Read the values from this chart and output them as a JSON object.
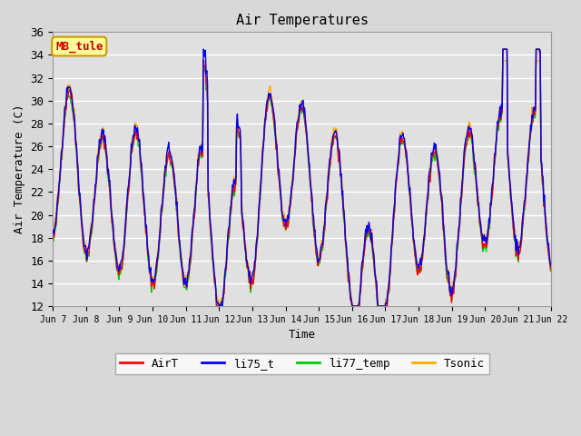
{
  "title": "Air Temperatures",
  "ylabel": "Air Temperature (C)",
  "xlabel": "Time",
  "ylim": [
    12,
    36
  ],
  "yticks": [
    12,
    14,
    16,
    18,
    20,
    22,
    24,
    26,
    28,
    30,
    32,
    34,
    36
  ],
  "series_colors": {
    "AirT": "#ff0000",
    "li75_t": "#0000ff",
    "li77_temp": "#00cc00",
    "Tsonic": "#ffaa00"
  },
  "annotation_text": "MB_tule",
  "annotation_color": "#cc0000",
  "annotation_bg": "#ffff99",
  "annotation_border": "#cc9900",
  "background_color": "#e0e0e0",
  "grid_color": "#ffffff",
  "x_tick_labels": [
    "Jun 7",
    "Jun 8",
    "Jun 9",
    "Jun 10",
    "Jun 11",
    "Jun 12",
    "Jun 13",
    "Jun 14",
    "Jun 15",
    "Jun 16",
    "Jun 17",
    "Jun 18",
    "Jun 19",
    "Jun 20",
    "Jun 21",
    "Jun 22"
  ],
  "num_days": 15,
  "points_per_day": 48
}
